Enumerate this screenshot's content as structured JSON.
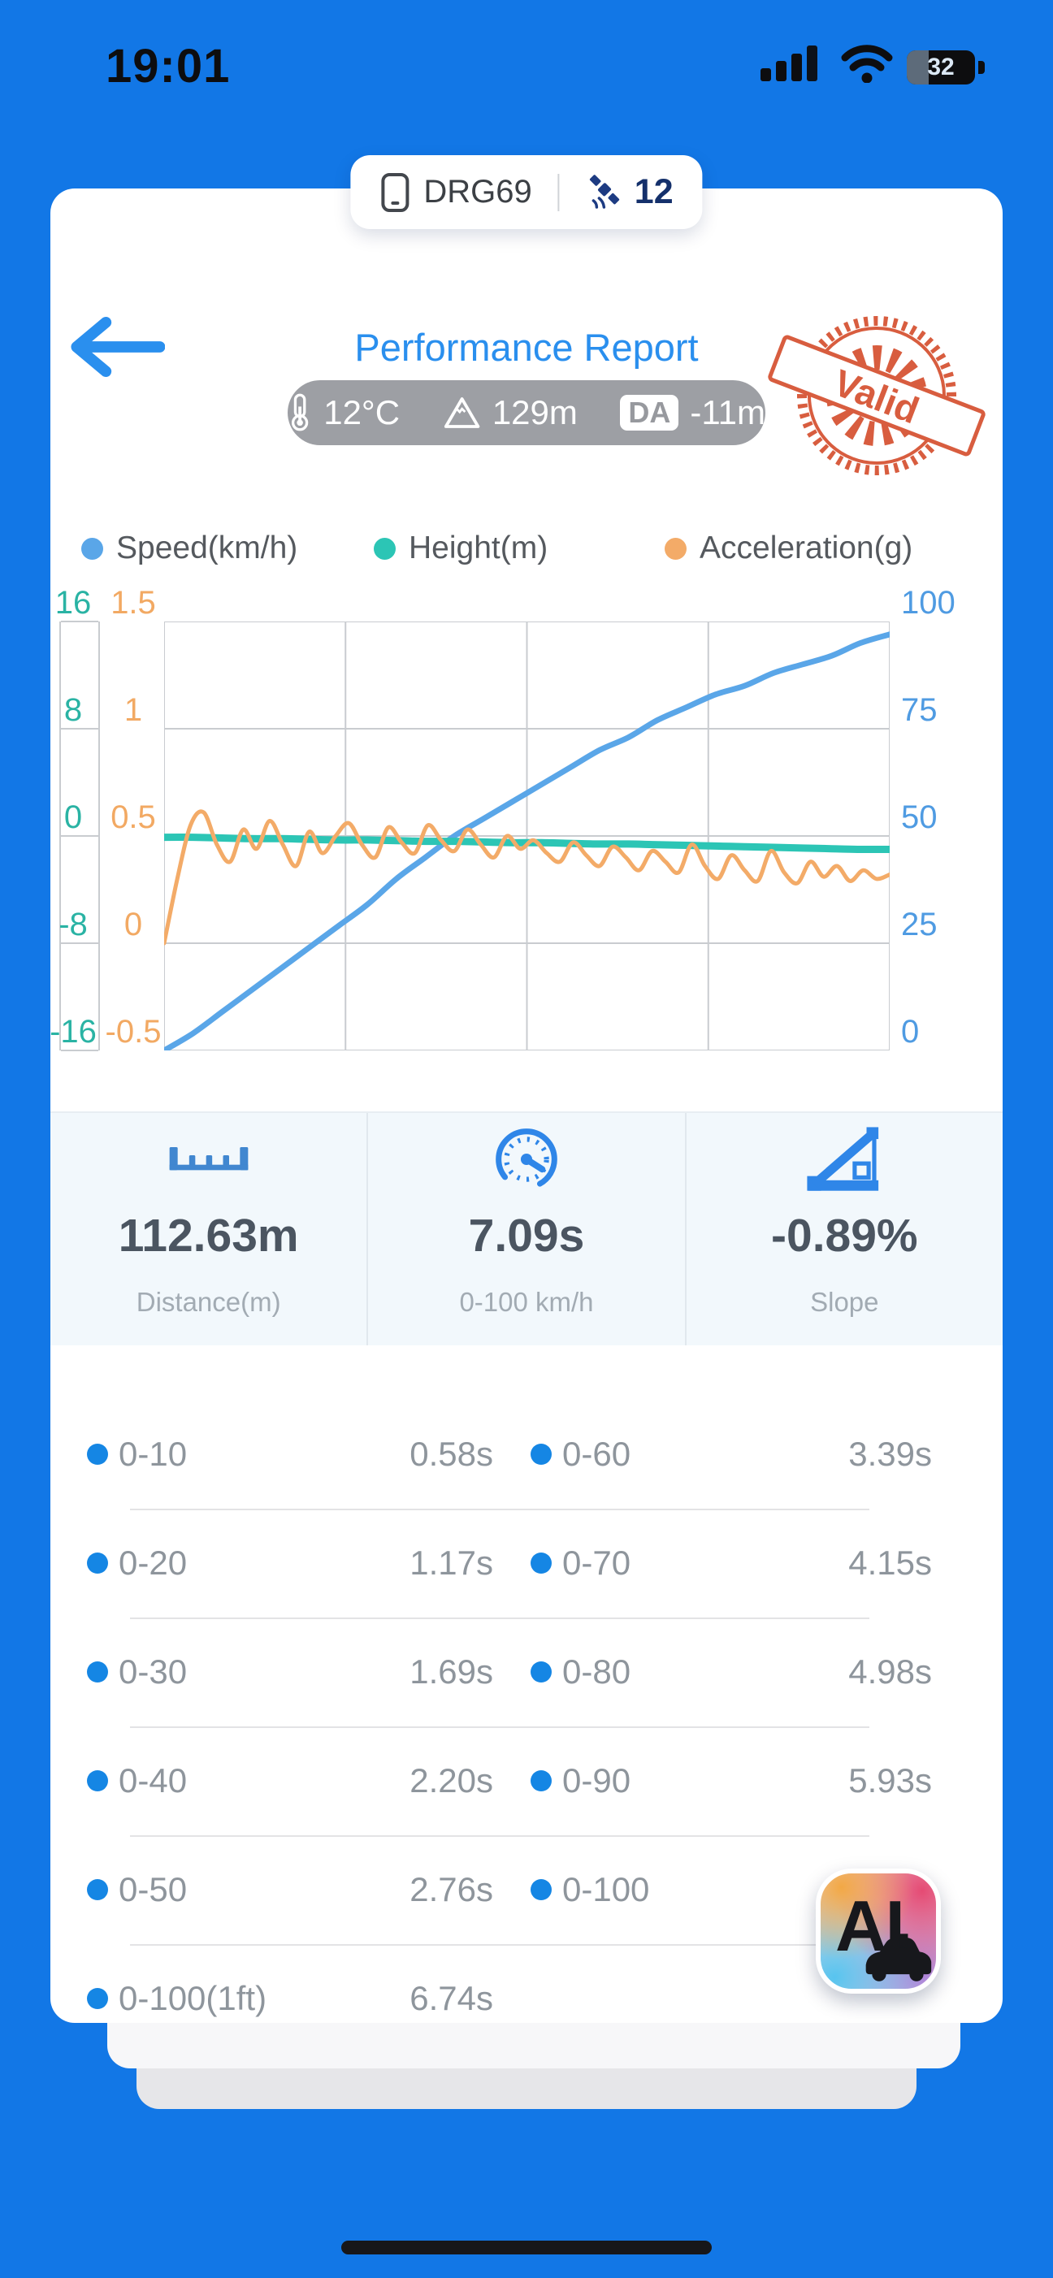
{
  "status_bar": {
    "time": "19:01",
    "battery_percent": "32"
  },
  "device_pill": {
    "device_name": "DRG69",
    "satellite_count": "12"
  },
  "header": {
    "title": "Performance Report",
    "stamp_text": "Valid"
  },
  "environment": {
    "temperature": "12°C",
    "altitude": "129m",
    "da_badge": "DA",
    "density_altitude": "-11m"
  },
  "legend": [
    {
      "label": "Speed(km/h)",
      "color": "#5aa6e8"
    },
    {
      "label": "Height(m)",
      "color": "#2cc5b5"
    },
    {
      "label": "Acceleration(g)",
      "color": "#f3ab68"
    }
  ],
  "chart_data": {
    "type": "line",
    "title": "",
    "xlabel": "",
    "x_tick_labels": [],
    "x_divisions": 4,
    "grid": true,
    "axes": [
      {
        "id": "height",
        "title": "Height(m)",
        "side": "outer-left",
        "color": "#2ab3a4",
        "min": -16,
        "max": 16,
        "ticks": [
          16,
          8,
          0,
          -8,
          -16
        ]
      },
      {
        "id": "acceleration",
        "title": "Acceleration(g)",
        "side": "left",
        "color": "#f2a963",
        "min": -0.5,
        "max": 1.5,
        "ticks": [
          1.5,
          1,
          0.5,
          0,
          -0.5
        ]
      },
      {
        "id": "speed",
        "title": "Speed(km/h)",
        "side": "right",
        "color": "#4f9be2",
        "min": 0,
        "max": 100,
        "ticks": [
          100,
          75,
          50,
          25,
          0
        ]
      }
    ],
    "series": [
      {
        "name": "Speed(km/h)",
        "axis": "speed",
        "color": "#5aa6e8",
        "width": 7,
        "values": [
          0,
          4,
          9,
          14,
          19,
          24,
          29,
          34,
          40,
          45,
          50,
          54,
          58,
          62,
          66,
          70,
          73,
          77,
          80,
          83,
          85,
          88,
          90,
          92,
          95,
          97
        ]
      },
      {
        "name": "Height(m)",
        "axis": "height",
        "color": "#2cc5b5",
        "width": 9,
        "values": [
          -0.1,
          -0.1,
          -0.15,
          -0.2,
          -0.2,
          -0.25,
          -0.3,
          -0.3,
          -0.35,
          -0.4,
          -0.4,
          -0.45,
          -0.5,
          -0.5,
          -0.55,
          -0.6,
          -0.6,
          -0.65,
          -0.7,
          -0.75,
          -0.8,
          -0.85,
          -0.9,
          -0.95,
          -1.0,
          -1.0
        ]
      },
      {
        "name": "Acceleration(g)",
        "axis": "acceleration",
        "color": "#f3ab68",
        "width": 5,
        "values": [
          0.0,
          0.3,
          0.55,
          0.61,
          0.46,
          0.38,
          0.53,
          0.44,
          0.57,
          0.46,
          0.36,
          0.52,
          0.42,
          0.5,
          0.56,
          0.46,
          0.4,
          0.54,
          0.47,
          0.42,
          0.55,
          0.48,
          0.43,
          0.53,
          0.46,
          0.4,
          0.5,
          0.44,
          0.48,
          0.42,
          0.38,
          0.47,
          0.41,
          0.36,
          0.45,
          0.4,
          0.34,
          0.43,
          0.38,
          0.33,
          0.46,
          0.36,
          0.3,
          0.41,
          0.34,
          0.29,
          0.43,
          0.33,
          0.28,
          0.38,
          0.31,
          0.36,
          0.29,
          0.34,
          0.3,
          0.32
        ]
      }
    ]
  },
  "stats": [
    {
      "icon": "ruler-icon",
      "value": "112.63m",
      "label": "Distance(m)"
    },
    {
      "icon": "speedometer-icon",
      "value": "7.09s",
      "label": "0-100 km/h"
    },
    {
      "icon": "slope-icon",
      "value": "-0.89%",
      "label": "Slope"
    }
  ],
  "acceleration_times": {
    "rows": [
      {
        "cells": [
          {
            "label": "0-10",
            "value": "0.58s"
          },
          {
            "label": "0-60",
            "value": "3.39s"
          }
        ]
      },
      {
        "cells": [
          {
            "label": "0-20",
            "value": "1.17s"
          },
          {
            "label": "0-70",
            "value": "4.15s"
          }
        ]
      },
      {
        "cells": [
          {
            "label": "0-30",
            "value": "1.69s"
          },
          {
            "label": "0-80",
            "value": "4.98s"
          }
        ]
      },
      {
        "cells": [
          {
            "label": "0-40",
            "value": "2.20s"
          },
          {
            "label": "0-90",
            "value": "5.93s"
          }
        ]
      },
      {
        "cells": [
          {
            "label": "0-50",
            "value": "2.76s"
          },
          {
            "label": "0-100",
            "value": "7.09s"
          }
        ]
      },
      {
        "cells": [
          {
            "label": "0-100(1ft)",
            "value": "6.74s"
          }
        ]
      }
    ]
  },
  "ai_button": {
    "label": "AI"
  }
}
